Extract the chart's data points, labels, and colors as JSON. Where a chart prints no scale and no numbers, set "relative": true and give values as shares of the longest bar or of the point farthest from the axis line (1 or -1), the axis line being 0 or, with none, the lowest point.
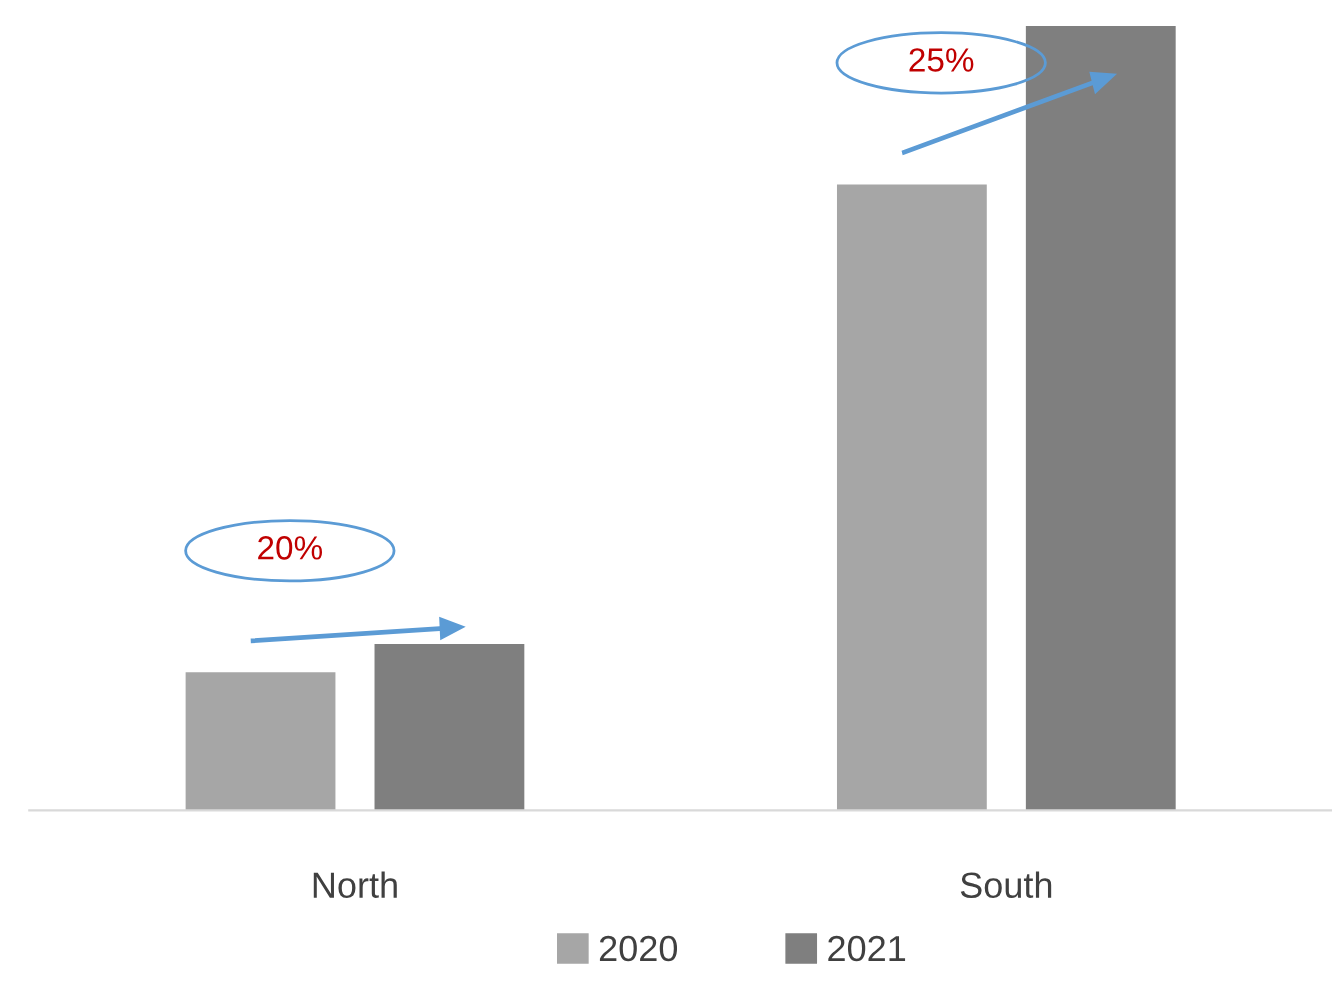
{
  "chart_data": {
    "type": "bar",
    "relative": true,
    "categories": [
      "North",
      "South"
    ],
    "series": [
      {
        "name": "2020",
        "color": "#a6a6a6",
        "values": [
          0.176,
          0.798
        ]
      },
      {
        "name": "2021",
        "color": "#7f7f7f",
        "values": [
          0.212,
          1
        ]
      }
    ],
    "annotations": [
      "20%",
      "25%"
    ],
    "legend": "bottom",
    "grid": false
  }
}
